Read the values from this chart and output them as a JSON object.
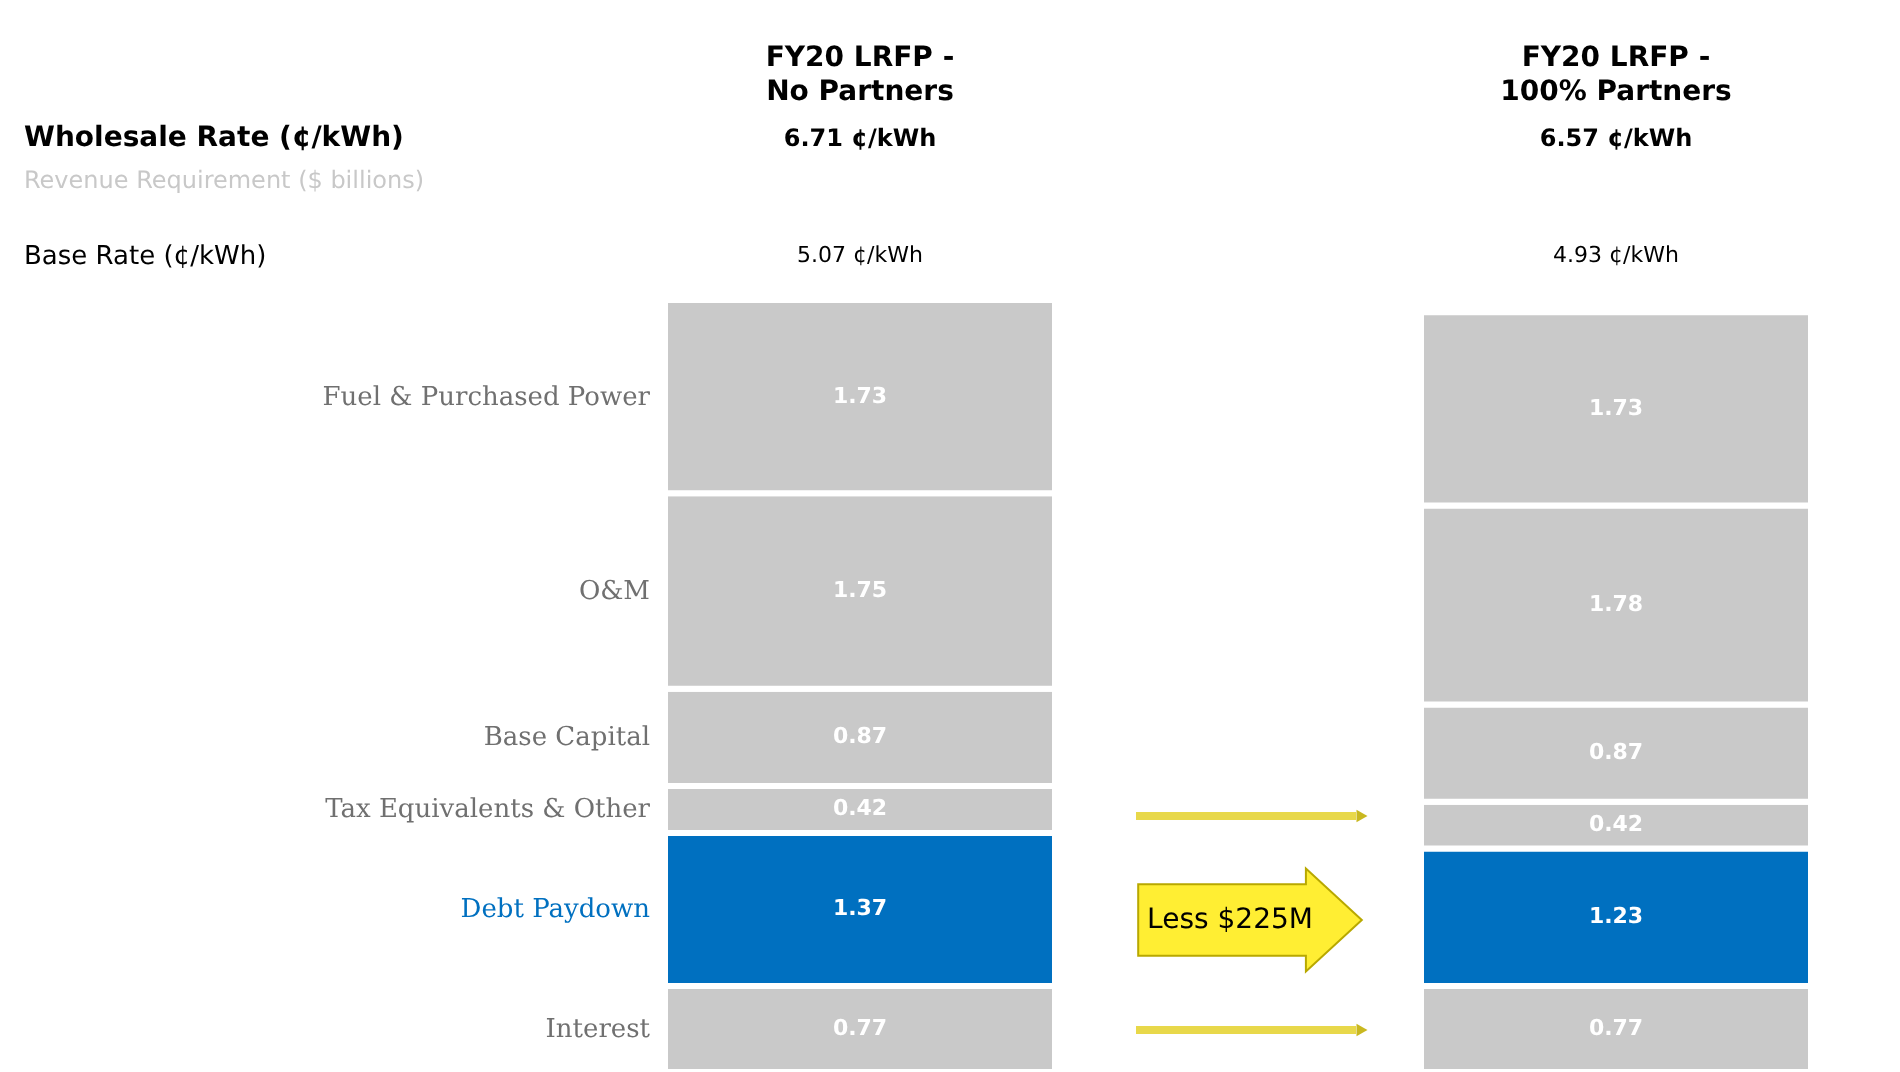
{
  "chart_data": {
    "type": "bar",
    "stacked": true,
    "data_labels": true,
    "categories": [
      "FY20 LRFP -\nNo Partners",
      "FY20 LRFP -\n100% Partners"
    ],
    "series": [
      {
        "name": "Interest",
        "color": "#c9c9c9",
        "values": [
          0.77,
          0.77
        ]
      },
      {
        "name": "Debt Paydown",
        "color": "#0070c0",
        "values": [
          1.37,
          1.23
        ]
      },
      {
        "name": "Tax Equivalents & Other",
        "color": "#c9c9c9",
        "values": [
          0.42,
          0.42
        ]
      },
      {
        "name": "Base Capital",
        "color": "#c9c9c9",
        "values": [
          0.87,
          0.87
        ]
      },
      {
        "name": "O&M",
        "color": "#c9c9c9",
        "values": [
          1.75,
          1.78
        ]
      },
      {
        "name": "Fuel & Purchased Power",
        "color": "#c9c9c9",
        "values": [
          1.73,
          1.73
        ]
      }
    ],
    "annotations": [
      "Wholesale Rate (¢/kWh)",
      "6.71 ¢/kWh",
      "6.57 ¢/kWh",
      "Revenue Requirement ($ billions)",
      "Base Rate (¢/kWh)",
      "5.07 ¢/kWh",
      "4.93 ¢/kWh",
      "Less $225M"
    ]
  }
}
